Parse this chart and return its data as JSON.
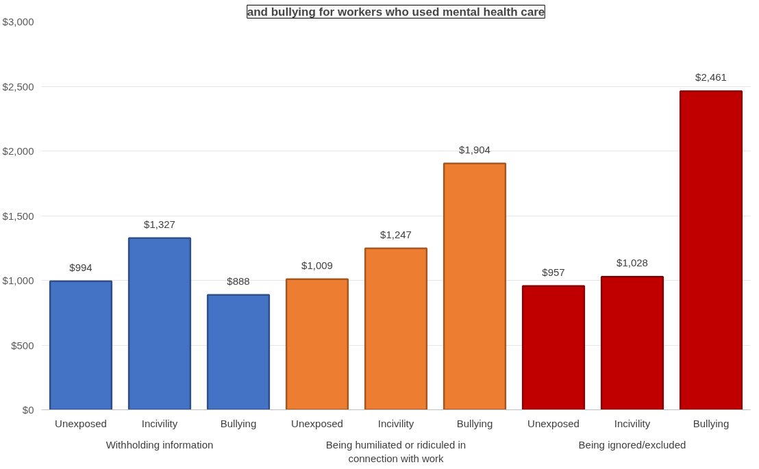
{
  "chart_data": {
    "type": "bar",
    "title": "and bullying for workers who used mental health care",
    "categories": [
      "Unexposed",
      "Incivility",
      "Bullying",
      "Unexposed",
      "Incivility",
      "Bullying",
      "Unexposed",
      "Incivility",
      "Bullying"
    ],
    "series": [
      {
        "name": "Withholding information",
        "color": "#4472c4",
        "values": [
          994,
          1327,
          888,
          null,
          null,
          null,
          null,
          null,
          null
        ],
        "value_labels": [
          "$994",
          "$1,327",
          "$888",
          null,
          null,
          null,
          null,
          null,
          null
        ]
      },
      {
        "name": "Being humiliated or ridiculed in connection with work",
        "color": "#ed7d31",
        "values": [
          null,
          null,
          null,
          1009,
          1247,
          1904,
          null,
          null,
          null
        ],
        "value_labels": [
          null,
          null,
          null,
          "$1,009",
          "$1,247",
          "$1,904",
          null,
          null,
          null
        ]
      },
      {
        "name": "Being ignored/excluded",
        "color": "#c00000",
        "values": [
          null,
          null,
          null,
          null,
          null,
          null,
          957,
          1028,
          2461
        ],
        "value_labels": [
          null,
          null,
          null,
          null,
          null,
          null,
          "$957",
          "$1,028",
          "$2,461"
        ]
      }
    ],
    "ylim": [
      0,
      3000
    ],
    "yticks": [
      {
        "value": 0,
        "label": "$0"
      },
      {
        "value": 500,
        "label": "$500"
      },
      {
        "value": 1000,
        "label": "$1,000"
      },
      {
        "value": 1500,
        "label": "$1,500"
      },
      {
        "value": 2000,
        "label": "$2,000"
      },
      {
        "value": 2500,
        "label": "$2,500"
      },
      {
        "value": 3000,
        "label": "$3,000"
      }
    ],
    "grid": "y"
  }
}
